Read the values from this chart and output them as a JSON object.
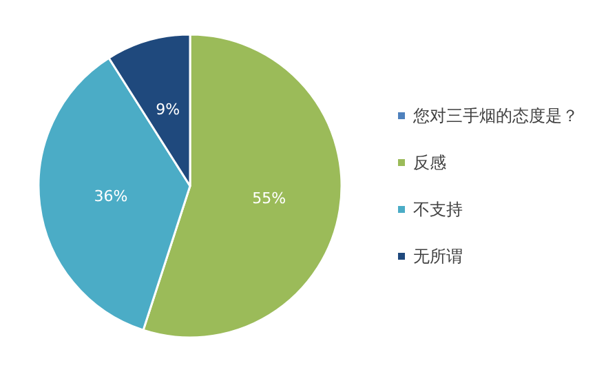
{
  "chart_data": {
    "type": "pie",
    "categories": [
      "您对三手烟的态度是？",
      "反感",
      "不支持",
      "无所谓"
    ],
    "values": [
      0,
      55,
      36,
      9
    ],
    "colors": [
      "#4f81bd",
      "#9bbb59",
      "#4bacc6",
      "#1f497d"
    ],
    "value_labels": [
      null,
      "55%",
      "36%",
      "9%"
    ],
    "legend": "right"
  }
}
